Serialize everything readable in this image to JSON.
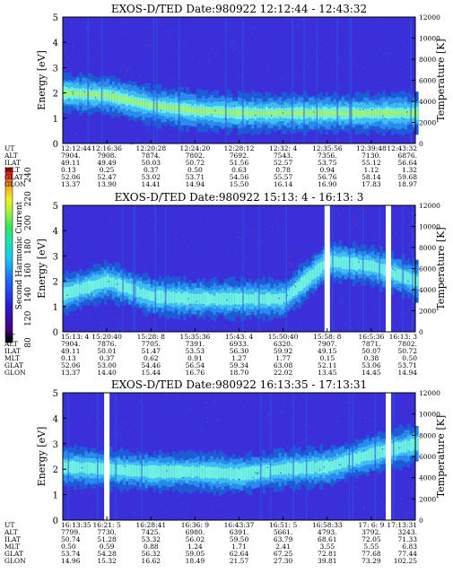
{
  "colors": {
    "background": "#ffffff",
    "spectrogram_base": "#3a2fd8",
    "band_colors": [
      "#1a2bb5",
      "#1e5bd6",
      "#2b8cf0",
      "#3fc0f5",
      "#6ff0e0",
      "#9cf27a"
    ],
    "gap": "#ffffff",
    "colorbar": [
      "#000000",
      "#4b0082",
      "#2a1fd4",
      "#1e6bf0",
      "#18c8f0",
      "#19e5b0",
      "#2ee65a",
      "#9ef23c",
      "#f0f020",
      "#f5a020",
      "#e83020",
      "#c00000"
    ]
  },
  "colorbar": {
    "label": "Second Harmonic Current",
    "ticks": [
      "80",
      "120",
      "140",
      "160",
      "180",
      "200",
      "220",
      "240"
    ]
  },
  "chart_data": [
    {
      "type": "heatmap",
      "title": "EXOS-D/TED   Date:980922   12:12:44 - 12:43:32",
      "ylabel": "Energy [eV]",
      "y2label": "Temperature [K]",
      "ylim": [
        0,
        5
      ],
      "y2lim": [
        0,
        12000
      ],
      "yticks": [
        "0",
        "1",
        "2",
        "3",
        "4",
        "5"
      ],
      "y2ticks": [
        "0",
        "2000",
        "4000",
        "6000",
        "8000",
        "10000",
        "12000"
      ],
      "rows": [
        "UT",
        "ALT",
        "ILAT",
        "MLT",
        "GLAT",
        "GLON"
      ],
      "columns": [
        [
          "12:12:44",
          "7904.",
          "49.11",
          "0.13",
          "52.06",
          "13.37"
        ],
        [
          "12:16:36",
          "7908.",
          "49.49",
          "0.25",
          "52.47",
          "13.90"
        ],
        [
          "12:20:28",
          "7874.",
          "50.03",
          "0.37",
          "53.02",
          "14.41"
        ],
        [
          "12:24:20",
          "7802.",
          "50.72",
          "0.50",
          "53.71",
          "14.94"
        ],
        [
          "12:28:12",
          "7692.",
          "51.56",
          "0.63",
          "54.56",
          "15.50"
        ],
        [
          "12:32: 4",
          "7543.",
          "52.57",
          "0.78",
          "55.57",
          "16.14"
        ],
        [
          "12:35:56",
          "7356.",
          "53.75",
          "0.94",
          "56.76",
          "16.90"
        ],
        [
          "12:39:48",
          "7130.",
          "55.12",
          "1.12",
          "58.14",
          "17.83"
        ],
        [
          "12:43:32",
          "6876.",
          "56.64",
          "1.32",
          "59.68",
          "18.97"
        ]
      ],
      "band": {
        "energy_center": [
          2.0,
          1.9,
          1.5,
          1.3,
          1.2,
          1.2,
          1.2,
          1.2,
          1.2
        ],
        "intensity": "high"
      },
      "gaps": []
    },
    {
      "type": "heatmap",
      "title": "EXOS-D/TED   Date:980922   15:13: 4 - 16:13: 3",
      "ylabel": "Energy [eV]",
      "y2label": "Temperature [K]",
      "ylim": [
        0,
        5
      ],
      "y2lim": [
        0,
        12000
      ],
      "yticks": [
        "0",
        "1",
        "2",
        "3",
        "4",
        "5"
      ],
      "y2ticks": [
        "0",
        "2000",
        "4000",
        "6000",
        "8000",
        "10000",
        "12000"
      ],
      "rows": [
        "UT",
        "ALT",
        "ILAT",
        "MLT",
        "GLAT",
        "GLON"
      ],
      "columns": [
        [
          "15:13: 4",
          "7904.",
          "49.11",
          "0.13",
          "52.06",
          "13.37"
        ],
        [
          "15:20:40",
          "7876.",
          "50.01",
          "0.37",
          "53.00",
          "14.40"
        ],
        [
          "15:28: 8",
          "7705.",
          "51.47",
          "0.62",
          "54.46",
          "15.44"
        ],
        [
          "15:35:36",
          "7391.",
          "53.53",
          "0.91",
          "56.54",
          "16.76"
        ],
        [
          "15:43: 4",
          "6933.",
          "56.30",
          "1.27",
          "59.34",
          "18.70"
        ],
        [
          "15:50:40",
          "6320.",
          "59.92",
          "1.77",
          "63.08",
          "22.02"
        ],
        [
          "15:58: 8",
          "7907.",
          "49.15",
          "0.15",
          "52.11",
          "13.45"
        ],
        [
          "16:5:36",
          "7871.",
          "50.07",
          "0.38",
          "53.06",
          "14.45"
        ],
        [
          "16:13: 3",
          "7802.",
          "50.72",
          "0.50",
          "53.71",
          "14.94"
        ]
      ],
      "band": {
        "energy_center": [
          1.5,
          2.0,
          1.4,
          1.3,
          1.3,
          1.3,
          2.8,
          2.6,
          2.0
        ],
        "intensity": "medium"
      },
      "gaps": [
        "15:58: 8",
        "16:13: 3"
      ]
    },
    {
      "type": "heatmap",
      "title": "EXOS-D/TED   Date:980922   16:13:35 - 17:13:31",
      "ylabel": "Energy [eV]",
      "y2label": "Temperature [K]",
      "ylim": [
        0,
        5
      ],
      "y2lim": [
        0,
        12000
      ],
      "yticks": [
        "0",
        "1",
        "2",
        "3",
        "4",
        "5"
      ],
      "y2ticks": [
        "0",
        "2000",
        "4000",
        "6000",
        "8000",
        "10000",
        "12000"
      ],
      "rows": [
        "UT",
        "ALT",
        "ILAT",
        "MLT",
        "GLAT",
        "GLON"
      ],
      "columns": [
        [
          "16:13:35",
          "7799.",
          "50.74",
          "0.50",
          "53.74",
          "14.96"
        ],
        [
          "16:21: 5",
          "7730.",
          "51.28",
          "0.59",
          "54.28",
          "15.32"
        ],
        [
          "16:28:41",
          "7425.",
          "53.32",
          "0.88",
          "56.32",
          "16.62"
        ],
        [
          "16:36: 9",
          "6980.",
          "56.02",
          "1.24",
          "59.05",
          "18.49"
        ],
        [
          "16:43:37",
          "6391.",
          "59.50",
          "1.71",
          "62.64",
          "21.57"
        ],
        [
          "16:51: 5",
          "5661.",
          "63.79",
          "2.41",
          "67.25",
          "27.30"
        ],
        [
          "16:58:33",
          "4793.",
          "68.61",
          "3.55",
          "72.81",
          "39.81"
        ],
        [
          "17: 6: 9",
          "3792.",
          "72.05",
          "5.55",
          "77.68",
          "73.29"
        ],
        [
          "17:13:31",
          "3243.",
          "71.33",
          "6.83",
          "77.44",
          "102.25"
        ]
      ],
      "band": {
        "energy_center": [
          2.1,
          2.0,
          1.9,
          1.9,
          1.8,
          2.0,
          2.1,
          2.6,
          3.0
        ],
        "intensity": "medium"
      },
      "gaps": [
        "16:21: 5",
        "17:13:31"
      ]
    }
  ]
}
